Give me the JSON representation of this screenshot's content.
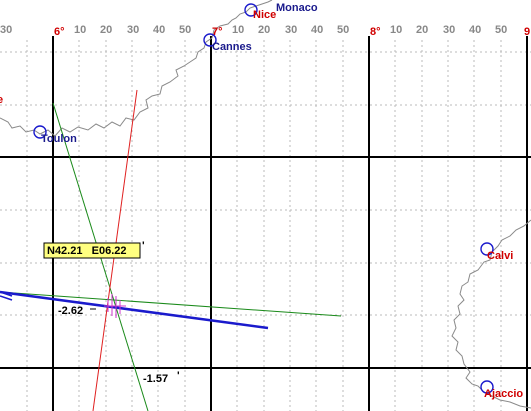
{
  "scale": {
    "labels": [
      "30",
      "6°",
      "10",
      "20",
      "30",
      "40",
      "50",
      "7°",
      "10",
      "20",
      "30",
      "40",
      "50",
      "8°",
      "10",
      "20",
      "30",
      "40",
      "50",
      "9"
    ]
  },
  "cities": [
    {
      "name": "Monaco"
    },
    {
      "name": "Nice"
    },
    {
      "name": "Cannes"
    },
    {
      "name": "Toulon"
    },
    {
      "name": "Calvi"
    },
    {
      "name": "Ajaccio"
    }
  ],
  "edge_label": "e",
  "position": "N42.21   E06.22",
  "readouts": [
    "-2.62",
    "-1.57"
  ]
}
